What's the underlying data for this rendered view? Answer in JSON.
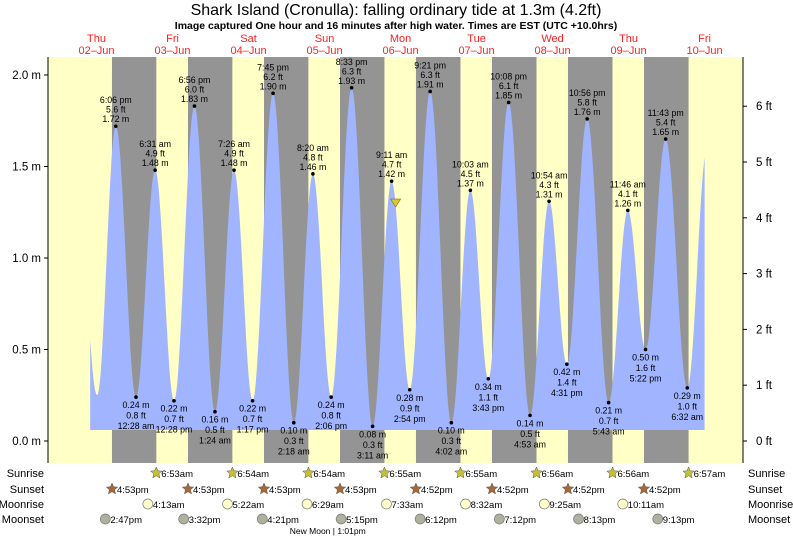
{
  "chart_data": {
    "type": "area",
    "title": "Shark Island (Cronulla): falling  ordinary tide at 1.3m (4.2ft)",
    "subtitle": "Image captured One hour and 16 minutes after high water. Times are EST (UTC +10.0hrs)",
    "days": [
      {
        "dow": "Thu",
        "date": "02–Jun"
      },
      {
        "dow": "Fri",
        "date": "03–Jun"
      },
      {
        "dow": "Sat",
        "date": "04–Jun"
      },
      {
        "dow": "Sun",
        "date": "05–Jun"
      },
      {
        "dow": "Mon",
        "date": "06–Jun"
      },
      {
        "dow": "Tue",
        "date": "07–Jun"
      },
      {
        "dow": "Wed",
        "date": "08–Jun"
      },
      {
        "dow": "Thu",
        "date": "09–Jun"
      },
      {
        "dow": "Fri",
        "date": "10–Jun"
      }
    ],
    "y_left": {
      "unit": "m",
      "range": [
        0,
        2.1
      ],
      "ticks": [
        "0.0 m",
        "0.5 m",
        "1.0 m",
        "1.5 m",
        "2.0 m"
      ],
      "tick_values": [
        0,
        0.5,
        1,
        1.5,
        2
      ]
    },
    "y_right": {
      "unit": "ft",
      "ticks": [
        "0 ft",
        "1 ft",
        "2 ft",
        "3 ft",
        "4 ft",
        "5 ft",
        "6 ft"
      ],
      "tick_values": [
        0,
        1,
        2,
        3,
        4,
        5,
        6
      ]
    },
    "current": {
      "day": 4,
      "time": "10:27am",
      "height_m": 1.3,
      "height_ft": 4.2
    },
    "extremes": [
      {
        "type": "high",
        "day": 0,
        "time": "6:06 pm",
        "m": "1.72 m",
        "ft": "5.6 ft",
        "value": 1.72
      },
      {
        "type": "low",
        "day": 1,
        "time": "12:28 am",
        "m": "0.24 m",
        "ft": "0.8 ft",
        "value": 0.24
      },
      {
        "type": "high",
        "day": 1,
        "time": "6:31 am",
        "m": "1.48 m",
        "ft": "4.9 ft",
        "value": 1.48
      },
      {
        "type": "low",
        "day": 1,
        "time": "12:28 pm",
        "m": "0.22 m",
        "ft": "0.7 ft",
        "value": 0.22
      },
      {
        "type": "high",
        "day": 1,
        "time": "6:56 pm",
        "m": "1.83 m",
        "ft": "6.0 ft",
        "value": 1.83
      },
      {
        "type": "low",
        "day": 2,
        "time": "1:24 am",
        "m": "0.16 m",
        "ft": "0.5 ft",
        "value": 0.16
      },
      {
        "type": "high",
        "day": 2,
        "time": "7:26 am",
        "m": "1.48 m",
        "ft": "4.9 ft",
        "value": 1.48
      },
      {
        "type": "low",
        "day": 2,
        "time": "1:17 pm",
        "m": "0.22 m",
        "ft": "0.7 ft",
        "value": 0.22
      },
      {
        "type": "high",
        "day": 2,
        "time": "7:45 pm",
        "m": "1.90 m",
        "ft": "6.2 ft",
        "value": 1.9
      },
      {
        "type": "low",
        "day": 3,
        "time": "2:18 am",
        "m": "0.10 m",
        "ft": "0.3 ft",
        "value": 0.1
      },
      {
        "type": "high",
        "day": 3,
        "time": "8:20 am",
        "m": "1.46 m",
        "ft": "4.8 ft",
        "value": 1.46
      },
      {
        "type": "low",
        "day": 3,
        "time": "2:06 pm",
        "m": "0.24 m",
        "ft": "0.8 ft",
        "value": 0.24
      },
      {
        "type": "high",
        "day": 3,
        "time": "8:33 pm",
        "m": "1.93 m",
        "ft": "6.3 ft",
        "value": 1.93
      },
      {
        "type": "low",
        "day": 4,
        "time": "3:11 am",
        "m": "0.08 m",
        "ft": "0.3 ft",
        "value": 0.08
      },
      {
        "type": "high",
        "day": 4,
        "time": "9:11 am",
        "m": "1.42 m",
        "ft": "4.7 ft",
        "value": 1.42
      },
      {
        "type": "low",
        "day": 4,
        "time": "2:54 pm",
        "m": "0.28 m",
        "ft": "0.9 ft",
        "value": 0.28
      },
      {
        "type": "high",
        "day": 4,
        "time": "9:21 pm",
        "m": "1.91 m",
        "ft": "6.3 ft",
        "value": 1.91
      },
      {
        "type": "low",
        "day": 5,
        "time": "4:02 am",
        "m": "0.10 m",
        "ft": "0.3 ft",
        "value": 0.1
      },
      {
        "type": "high",
        "day": 5,
        "time": "10:03 am",
        "m": "1.37 m",
        "ft": "4.5 ft",
        "value": 1.37
      },
      {
        "type": "low",
        "day": 5,
        "time": "3:43 pm",
        "m": "0.34 m",
        "ft": "1.1 ft",
        "value": 0.34
      },
      {
        "type": "high",
        "day": 5,
        "time": "10:08 pm",
        "m": "1.85 m",
        "ft": "6.1 ft",
        "value": 1.85
      },
      {
        "type": "low",
        "day": 6,
        "time": "4:53 am",
        "m": "0.14 m",
        "ft": "0.5 ft",
        "value": 0.14
      },
      {
        "type": "high",
        "day": 6,
        "time": "10:54 am",
        "m": "1.31 m",
        "ft": "4.3 ft",
        "value": 1.31
      },
      {
        "type": "low",
        "day": 6,
        "time": "4:31 pm",
        "m": "0.42 m",
        "ft": "1.4 ft",
        "value": 0.42
      },
      {
        "type": "high",
        "day": 6,
        "time": "10:56 pm",
        "m": "1.76 m",
        "ft": "5.8 ft",
        "value": 1.76
      },
      {
        "type": "low",
        "day": 7,
        "time": "5:43 am",
        "m": "0.21 m",
        "ft": "0.7 ft",
        "value": 0.21
      },
      {
        "type": "high",
        "day": 7,
        "time": "11:46 am",
        "m": "1.26 m",
        "ft": "4.1 ft",
        "value": 1.26
      },
      {
        "type": "low",
        "day": 7,
        "time": "5:22 pm",
        "m": "0.50 m",
        "ft": "1.6 ft",
        "value": 0.5
      },
      {
        "type": "high",
        "day": 7,
        "time": "11:43 pm",
        "m": "1.65 m",
        "ft": "5.4 ft",
        "value": 1.65
      },
      {
        "type": "low",
        "day": 8,
        "time": "6:32 am",
        "m": "0.29 m",
        "ft": "1.0 ft",
        "value": 0.29
      }
    ],
    "rows": {
      "sunrise": {
        "label": "Sunrise",
        "events": [
          {
            "day": 1,
            "time": "6:53am"
          },
          {
            "day": 2,
            "time": "6:54am"
          },
          {
            "day": 3,
            "time": "6:54am"
          },
          {
            "day": 4,
            "time": "6:55am"
          },
          {
            "day": 5,
            "time": "6:55am"
          },
          {
            "day": 6,
            "time": "6:56am"
          },
          {
            "day": 7,
            "time": "6:56am"
          },
          {
            "day": 8,
            "time": "6:57am"
          }
        ]
      },
      "sunset": {
        "label": "Sunset",
        "events": [
          {
            "day": 0,
            "time": "4:53pm"
          },
          {
            "day": 1,
            "time": "4:53pm"
          },
          {
            "day": 2,
            "time": "4:53pm"
          },
          {
            "day": 3,
            "time": "4:53pm"
          },
          {
            "day": 4,
            "time": "4:52pm"
          },
          {
            "day": 5,
            "time": "4:52pm"
          },
          {
            "day": 6,
            "time": "4:52pm"
          },
          {
            "day": 7,
            "time": "4:52pm"
          }
        ]
      },
      "moonrise": {
        "label": "Moonrise",
        "events": [
          {
            "day": 1,
            "time": "4:13am"
          },
          {
            "day": 2,
            "time": "5:22am"
          },
          {
            "day": 3,
            "time": "6:29am"
          },
          {
            "day": 4,
            "time": "7:33am"
          },
          {
            "day": 5,
            "time": "8:32am"
          },
          {
            "day": 6,
            "time": "9:25am"
          },
          {
            "day": 7,
            "time": "10:11am"
          }
        ]
      },
      "moonset": {
        "label": "Moonset",
        "events": [
          {
            "day": 0,
            "time": "2:47pm"
          },
          {
            "day": 1,
            "time": "3:32pm"
          },
          {
            "day": 2,
            "time": "4:21pm"
          },
          {
            "day": 3,
            "time": "5:15pm"
          },
          {
            "day": 4,
            "time": "6:12pm"
          },
          {
            "day": 5,
            "time": "7:12pm"
          },
          {
            "day": 6,
            "time": "8:13pm"
          },
          {
            "day": 7,
            "time": "9:13pm"
          }
        ]
      }
    },
    "moon_phase": {
      "text": "New Moon | 1:01pm",
      "day": 3,
      "time": "1:01pm"
    },
    "colors": {
      "day": "#ffffc6",
      "night": "#949494",
      "water": "#a0b4ff",
      "day_label": "#ff2020",
      "sunrise": "#c8c030",
      "sunset": "#a86838",
      "moonrise": "#ffffcc",
      "moonset": "#b0b0a0"
    }
  }
}
